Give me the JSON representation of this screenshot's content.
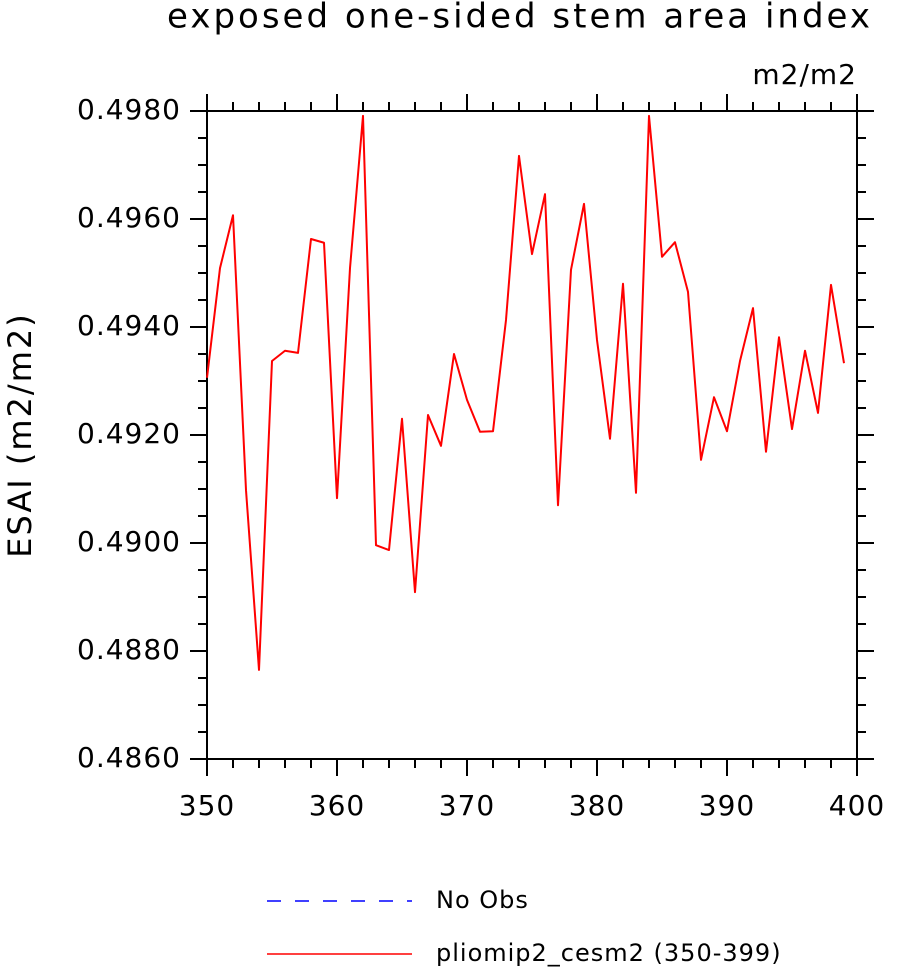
{
  "chart_data": {
    "type": "line",
    "title": "exposed one-sided stem area index",
    "units": "m2/m2",
    "y_label": "ESAI  (m2/m2)",
    "x": [
      350,
      351,
      352,
      353,
      354,
      355,
      356,
      357,
      358,
      359,
      360,
      361,
      362,
      363,
      364,
      365,
      366,
      367,
      368,
      369,
      370,
      371,
      372,
      373,
      374,
      375,
      376,
      377,
      378,
      379,
      380,
      381,
      382,
      383,
      384,
      385,
      386,
      387,
      388,
      389,
      390,
      391,
      392,
      393,
      394,
      395,
      396,
      397,
      398,
      399
    ],
    "series": [
      {
        "name": "No Obs",
        "color": "#0000ff",
        "dash": "dashed",
        "values": [
          null,
          null,
          null,
          null,
          null,
          null,
          null,
          null,
          null,
          null,
          null,
          null,
          null,
          null,
          null,
          null,
          null,
          null,
          null,
          null,
          null,
          null,
          null,
          null,
          null,
          null,
          null,
          null,
          null,
          null,
          null,
          null,
          null,
          null,
          null,
          null,
          null,
          null,
          null,
          null,
          null,
          null,
          null,
          null,
          null,
          null,
          null,
          null,
          null,
          null
        ]
      },
      {
        "name": "pliomip2_cesm2 (350-399)",
        "color": "#ff0000",
        "dash": "solid",
        "values": [
          0.49306,
          0.49509,
          0.49607,
          0.49098,
          0.48765,
          0.49337,
          0.49356,
          0.49352,
          0.49563,
          0.49556,
          0.49083,
          0.49509,
          0.49791,
          0.48996,
          0.48987,
          0.4923,
          0.48909,
          0.49237,
          0.4918,
          0.4935,
          0.49265,
          0.49206,
          0.49207,
          0.49413,
          0.49717,
          0.49535,
          0.49646,
          0.4907,
          0.49506,
          0.49628,
          0.49376,
          0.49193,
          0.4948,
          0.49093,
          0.49791,
          0.4953,
          0.49557,
          0.49465,
          0.49154,
          0.4927,
          0.49207,
          0.49337,
          0.49435,
          0.49169,
          0.49381,
          0.49211,
          0.49356,
          0.49241,
          0.49478,
          0.49333
        ]
      }
    ],
    "xlim": [
      350,
      400
    ],
    "xticks": [
      350,
      360,
      370,
      380,
      390,
      400
    ],
    "ylim": [
      0.486,
      0.498
    ],
    "yticks": [
      {
        "value": 0.486,
        "label": "0.4860"
      },
      {
        "value": 0.488,
        "label": "0.4880"
      },
      {
        "value": 0.49,
        "label": "0.4900"
      },
      {
        "value": 0.492,
        "label": "0.4920"
      },
      {
        "value": 0.494,
        "label": "0.4940"
      },
      {
        "value": 0.496,
        "label": "0.4960"
      },
      {
        "value": 0.498,
        "label": "0.4980"
      }
    ],
    "grid": false
  }
}
